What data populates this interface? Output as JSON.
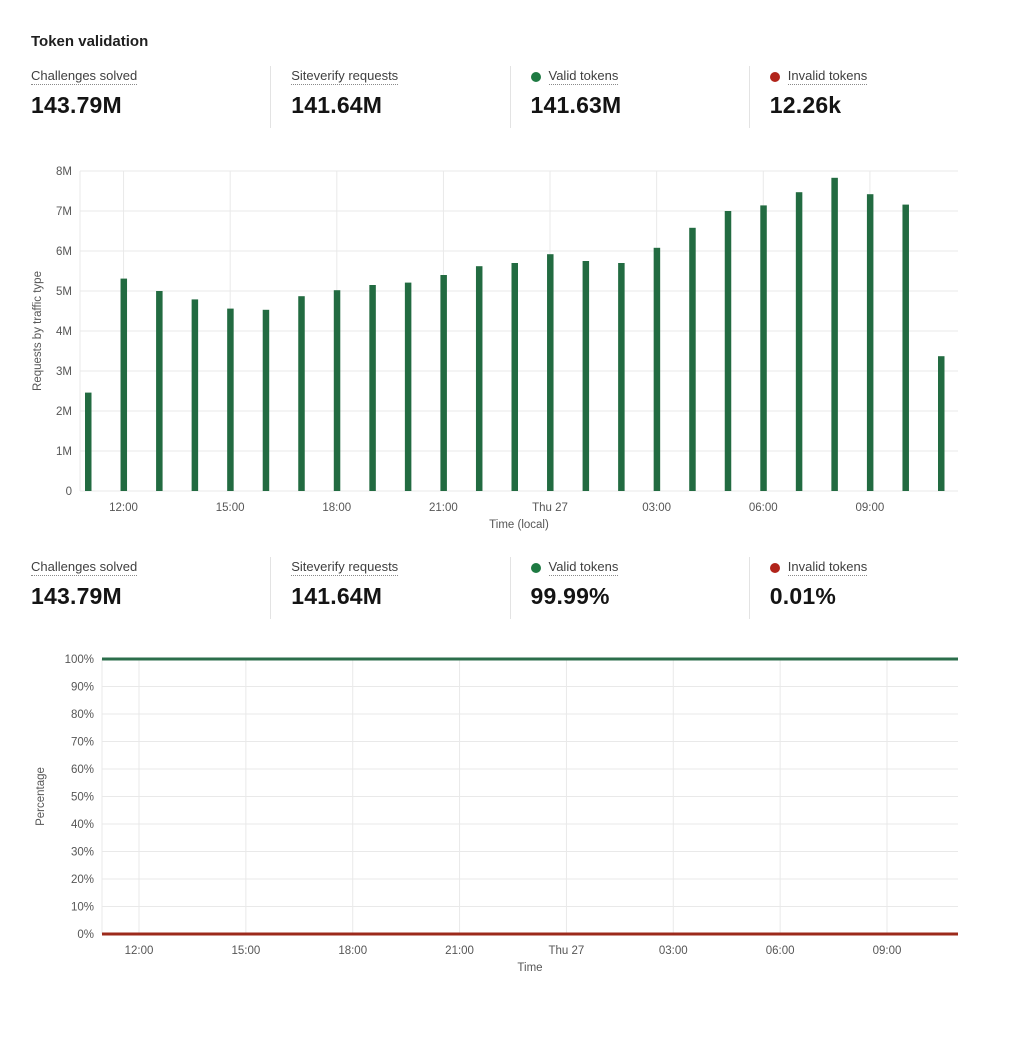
{
  "title": "Token validation",
  "colors": {
    "valid_dot_green": "#1e7a42",
    "invalid_dot_red": "#b1231a",
    "bar_green": "#226b41",
    "line_green": "#2b6e4b",
    "line_red": "#9c2a1b",
    "gridline": "#e9e9e9",
    "tick_text": "#565656"
  },
  "stats_requests": {
    "items": [
      {
        "label": "Challenges solved",
        "value": "143.79M"
      },
      {
        "label": "Siteverify requests",
        "value": "141.64M"
      },
      {
        "label": "Valid tokens",
        "value": "141.63M",
        "dot_color": "#1e7a42"
      },
      {
        "label": "Invalid tokens",
        "value": "12.26k",
        "dot_color": "#b1231a"
      }
    ]
  },
  "stats_percentage": {
    "items": [
      {
        "label": "Challenges solved",
        "value": "143.79M"
      },
      {
        "label": "Siteverify requests",
        "value": "141.64M"
      },
      {
        "label": "Valid tokens",
        "value": "99.99%",
        "dot_color": "#1e7a42"
      },
      {
        "label": "Invalid tokens",
        "value": "0.01%",
        "dot_color": "#b1231a"
      }
    ]
  },
  "chart_data": [
    {
      "type": "bar",
      "title": "",
      "xlabel": "Time (local)",
      "ylabel": "Requests by traffic type",
      "ylim": [
        0,
        8000000
      ],
      "y_tick_labels": [
        "0",
        "1M",
        "2M",
        "3M",
        "4M",
        "5M",
        "6M",
        "7M",
        "8M"
      ],
      "grid": true,
      "legend_position": "none",
      "bar_color": "#226b41",
      "categories": [
        "11:00",
        "12:00",
        "13:00",
        "14:00",
        "15:00",
        "16:00",
        "17:00",
        "18:00",
        "19:00",
        "20:00",
        "21:00",
        "22:00",
        "23:00",
        "Thu 27",
        "01:00",
        "02:00",
        "03:00",
        "04:00",
        "05:00",
        "06:00",
        "07:00",
        "08:00",
        "09:00",
        "10:00",
        "11:00"
      ],
      "values_millions": [
        2.46,
        5.31,
        5.0,
        4.79,
        4.56,
        4.53,
        4.87,
        5.02,
        5.15,
        5.21,
        5.4,
        5.62,
        5.7,
        5.92,
        5.75,
        5.7,
        6.08,
        6.58,
        7.0,
        7.14,
        7.47,
        7.83,
        7.42,
        7.16,
        3.37
      ],
      "x_tick_indices": [
        1,
        4,
        7,
        10,
        13,
        16,
        19,
        22
      ],
      "x_tick_labels": [
        "12:00",
        "15:00",
        "18:00",
        "21:00",
        "Thu 27",
        "03:00",
        "06:00",
        "09:00"
      ]
    },
    {
      "type": "line",
      "title": "",
      "xlabel": "Time",
      "ylabel": "Percentage",
      "ylim": [
        0,
        100
      ],
      "y_tick_labels": [
        "0%",
        "10%",
        "20%",
        "30%",
        "40%",
        "50%",
        "60%",
        "70%",
        "80%",
        "90%",
        "100%"
      ],
      "grid": true,
      "legend_position": "none",
      "x_tick_labels": [
        "12:00",
        "15:00",
        "18:00",
        "21:00",
        "Thu 27",
        "03:00",
        "06:00",
        "09:00"
      ],
      "series": [
        {
          "name": "Valid tokens",
          "color": "#2b6e4b",
          "value_percent": 99.99,
          "plotted_level": 100
        },
        {
          "name": "Invalid tokens",
          "color": "#9c2a1b",
          "value_percent": 0.01,
          "plotted_level": 0
        }
      ]
    }
  ]
}
